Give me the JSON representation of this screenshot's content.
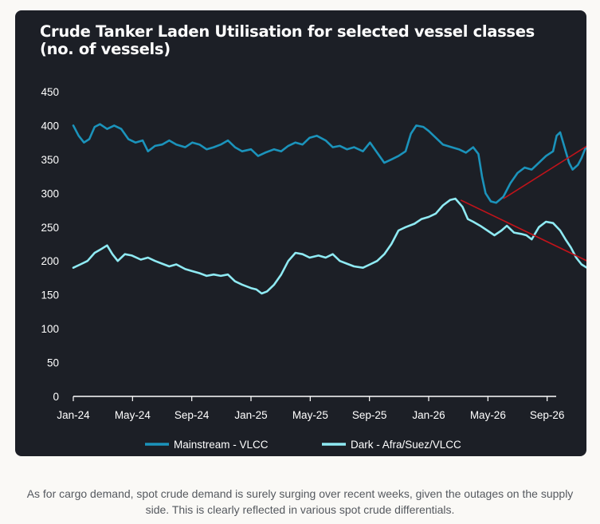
{
  "chart_data": {
    "type": "line",
    "title": "Crude Tanker Laden Utilisation for selected vessel classes",
    "subtitle": "(no. of vessels)",
    "xlabel": "",
    "ylabel": "",
    "ylim": [
      0,
      450
    ],
    "yticks": [
      "0",
      "50",
      "100",
      "150",
      "200",
      "250",
      "300",
      "350",
      "400",
      "450"
    ],
    "xticks": [
      "Jan-24",
      "May-24",
      "Sep-24",
      "Jan-25",
      "May-25",
      "Sep-25",
      "Jan-26",
      "May-26",
      "Sep-26"
    ],
    "grid": false,
    "legend_position": "bottom",
    "x_format": "year-month",
    "series": [
      {
        "name": "Mainstream - VLCC",
        "color": "#1b93bb",
        "points": [
          [
            2024.0,
            400
          ],
          [
            2024.03,
            385
          ],
          [
            2024.06,
            375
          ],
          [
            2024.09,
            380
          ],
          [
            2024.12,
            398
          ],
          [
            2024.15,
            402
          ],
          [
            2024.19,
            395
          ],
          [
            2024.23,
            400
          ],
          [
            2024.27,
            395
          ],
          [
            2024.31,
            380
          ],
          [
            2024.35,
            375
          ],
          [
            2024.39,
            378
          ],
          [
            2024.42,
            362
          ],
          [
            2024.46,
            370
          ],
          [
            2024.5,
            372
          ],
          [
            2024.54,
            378
          ],
          [
            2024.58,
            372
          ],
          [
            2024.63,
            368
          ],
          [
            2024.67,
            375
          ],
          [
            2024.71,
            372
          ],
          [
            2024.75,
            365
          ],
          [
            2024.79,
            368
          ],
          [
            2024.83,
            372
          ],
          [
            2024.87,
            378
          ],
          [
            2024.91,
            368
          ],
          [
            2024.95,
            362
          ],
          [
            2025.0,
            365
          ],
          [
            2025.04,
            355
          ],
          [
            2025.08,
            360
          ],
          [
            2025.13,
            365
          ],
          [
            2025.17,
            362
          ],
          [
            2025.21,
            370
          ],
          [
            2025.25,
            375
          ],
          [
            2025.29,
            372
          ],
          [
            2025.33,
            382
          ],
          [
            2025.37,
            385
          ],
          [
            2025.42,
            378
          ],
          [
            2025.46,
            368
          ],
          [
            2025.5,
            370
          ],
          [
            2025.54,
            365
          ],
          [
            2025.58,
            368
          ],
          [
            2025.63,
            362
          ],
          [
            2025.67,
            375
          ],
          [
            2025.71,
            360
          ],
          [
            2025.75,
            345
          ],
          [
            2025.79,
            350
          ],
          [
            2025.83,
            355
          ],
          [
            2025.87,
            362
          ],
          [
            2025.9,
            388
          ],
          [
            2025.93,
            400
          ],
          [
            2025.97,
            398
          ],
          [
            2026.0,
            392
          ],
          [
            2026.04,
            382
          ],
          [
            2026.08,
            372
          ],
          [
            2026.13,
            368
          ],
          [
            2026.17,
            365
          ],
          [
            2026.21,
            360
          ],
          [
            2026.25,
            368
          ],
          [
            2026.28,
            358
          ],
          [
            2026.3,
            325
          ],
          [
            2026.32,
            300
          ],
          [
            2026.35,
            288
          ],
          [
            2026.38,
            286
          ],
          [
            2026.42,
            295
          ],
          [
            2026.46,
            315
          ],
          [
            2026.5,
            330
          ],
          [
            2026.54,
            338
          ],
          [
            2026.58,
            335
          ],
          [
            2026.62,
            345
          ],
          [
            2026.66,
            355
          ],
          [
            2026.7,
            362
          ],
          [
            2026.72,
            385
          ],
          [
            2026.74,
            390
          ],
          [
            2026.76,
            372
          ],
          [
            2026.79,
            345
          ],
          [
            2026.81,
            335
          ],
          [
            2026.84,
            342
          ],
          [
            2026.86,
            352
          ],
          [
            2026.88,
            365
          ],
          [
            2026.9,
            372
          ],
          [
            2026.92,
            378
          ]
        ]
      },
      {
        "name": "Dark - Afra/Suez/VLCC",
        "color": "#8feaf3",
        "points": [
          [
            2024.0,
            190
          ],
          [
            2024.04,
            195
          ],
          [
            2024.08,
            200
          ],
          [
            2024.12,
            212
          ],
          [
            2024.16,
            218
          ],
          [
            2024.19,
            223
          ],
          [
            2024.22,
            210
          ],
          [
            2024.25,
            200
          ],
          [
            2024.29,
            210
          ],
          [
            2024.33,
            208
          ],
          [
            2024.38,
            202
          ],
          [
            2024.42,
            205
          ],
          [
            2024.46,
            200
          ],
          [
            2024.5,
            196
          ],
          [
            2024.54,
            192
          ],
          [
            2024.58,
            195
          ],
          [
            2024.63,
            188
          ],
          [
            2024.67,
            185
          ],
          [
            2024.71,
            182
          ],
          [
            2024.75,
            178
          ],
          [
            2024.79,
            180
          ],
          [
            2024.83,
            178
          ],
          [
            2024.87,
            180
          ],
          [
            2024.91,
            170
          ],
          [
            2024.95,
            165
          ],
          [
            2025.0,
            160
          ],
          [
            2025.03,
            158
          ],
          [
            2025.06,
            152
          ],
          [
            2025.09,
            155
          ],
          [
            2025.13,
            165
          ],
          [
            2025.17,
            180
          ],
          [
            2025.21,
            200
          ],
          [
            2025.25,
            212
          ],
          [
            2025.29,
            210
          ],
          [
            2025.33,
            205
          ],
          [
            2025.38,
            208
          ],
          [
            2025.42,
            205
          ],
          [
            2025.46,
            210
          ],
          [
            2025.5,
            200
          ],
          [
            2025.54,
            196
          ],
          [
            2025.58,
            192
          ],
          [
            2025.63,
            190
          ],
          [
            2025.67,
            195
          ],
          [
            2025.71,
            200
          ],
          [
            2025.75,
            210
          ],
          [
            2025.79,
            225
          ],
          [
            2025.83,
            245
          ],
          [
            2025.87,
            250
          ],
          [
            2025.92,
            255
          ],
          [
            2025.96,
            262
          ],
          [
            2026.0,
            265
          ],
          [
            2026.04,
            270
          ],
          [
            2026.08,
            282
          ],
          [
            2026.12,
            290
          ],
          [
            2026.15,
            292
          ],
          [
            2026.19,
            280
          ],
          [
            2026.22,
            262
          ],
          [
            2026.25,
            258
          ],
          [
            2026.29,
            252
          ],
          [
            2026.33,
            245
          ],
          [
            2026.37,
            238
          ],
          [
            2026.41,
            245
          ],
          [
            2026.44,
            252
          ],
          [
            2026.48,
            242
          ],
          [
            2026.52,
            240
          ],
          [
            2026.55,
            238
          ],
          [
            2026.58,
            232
          ],
          [
            2026.62,
            250
          ],
          [
            2026.66,
            258
          ],
          [
            2026.7,
            256
          ],
          [
            2026.74,
            245
          ],
          [
            2026.77,
            232
          ],
          [
            2026.8,
            220
          ],
          [
            2026.83,
            205
          ],
          [
            2026.86,
            195
          ],
          [
            2026.89,
            190
          ],
          [
            2026.91,
            185
          ],
          [
            2026.93,
            180
          ]
        ]
      }
    ],
    "annotations": [
      {
        "type": "arrow",
        "color": "#c0131a",
        "from": [
          2026.42,
          292
        ],
        "to": [
          2026.97,
          383
        ]
      },
      {
        "type": "arrow",
        "color": "#c0131a",
        "from": [
          2026.18,
          290
        ],
        "to": [
          2027.05,
          180
        ]
      }
    ]
  },
  "caption": "As for cargo demand, spot crude demand is surely surging over recent weeks, given the outages on the supply side. This is clearly reflected in various spot crude differentials."
}
